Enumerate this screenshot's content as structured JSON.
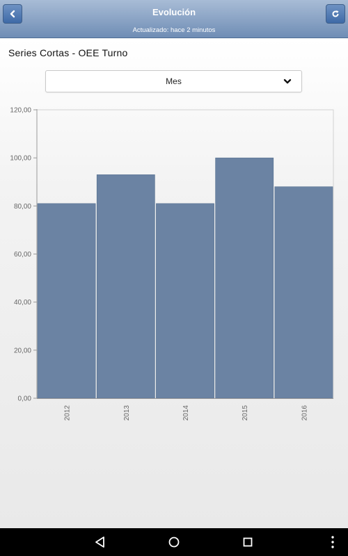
{
  "header": {
    "title": "Evolución",
    "subtitle": "Actualizado: hace 2 minutos",
    "back_icon": "chevron-left-icon",
    "refresh_icon": "refresh-icon"
  },
  "page": {
    "title": "Series Cortas - OEE Turno"
  },
  "period_select": {
    "value": "Mes",
    "icon": "chevron-down-icon"
  },
  "colors": {
    "header_top": "#a8bcd6",
    "header_bottom": "#6f8db5",
    "bar": "#6b83a3",
    "navbar": "#000000"
  },
  "chart_data": {
    "type": "bar",
    "categories": [
      "2012",
      "2013",
      "2014",
      "2015",
      "2016"
    ],
    "values": [
      81,
      93,
      81,
      100,
      88
    ],
    "ylim": [
      0,
      120
    ],
    "yticks": [
      0,
      20,
      40,
      60,
      80,
      100,
      120
    ],
    "ytick_labels": [
      "0,00",
      "20,00",
      "40,00",
      "60,00",
      "80,00",
      "100,00",
      "120,00"
    ],
    "grid": false,
    "legend": "none"
  },
  "navbar": {
    "back_icon": "triangle-back-icon",
    "home_icon": "circle-home-icon",
    "recents_icon": "square-recents-icon",
    "menu_icon": "vertical-dots-icon"
  }
}
